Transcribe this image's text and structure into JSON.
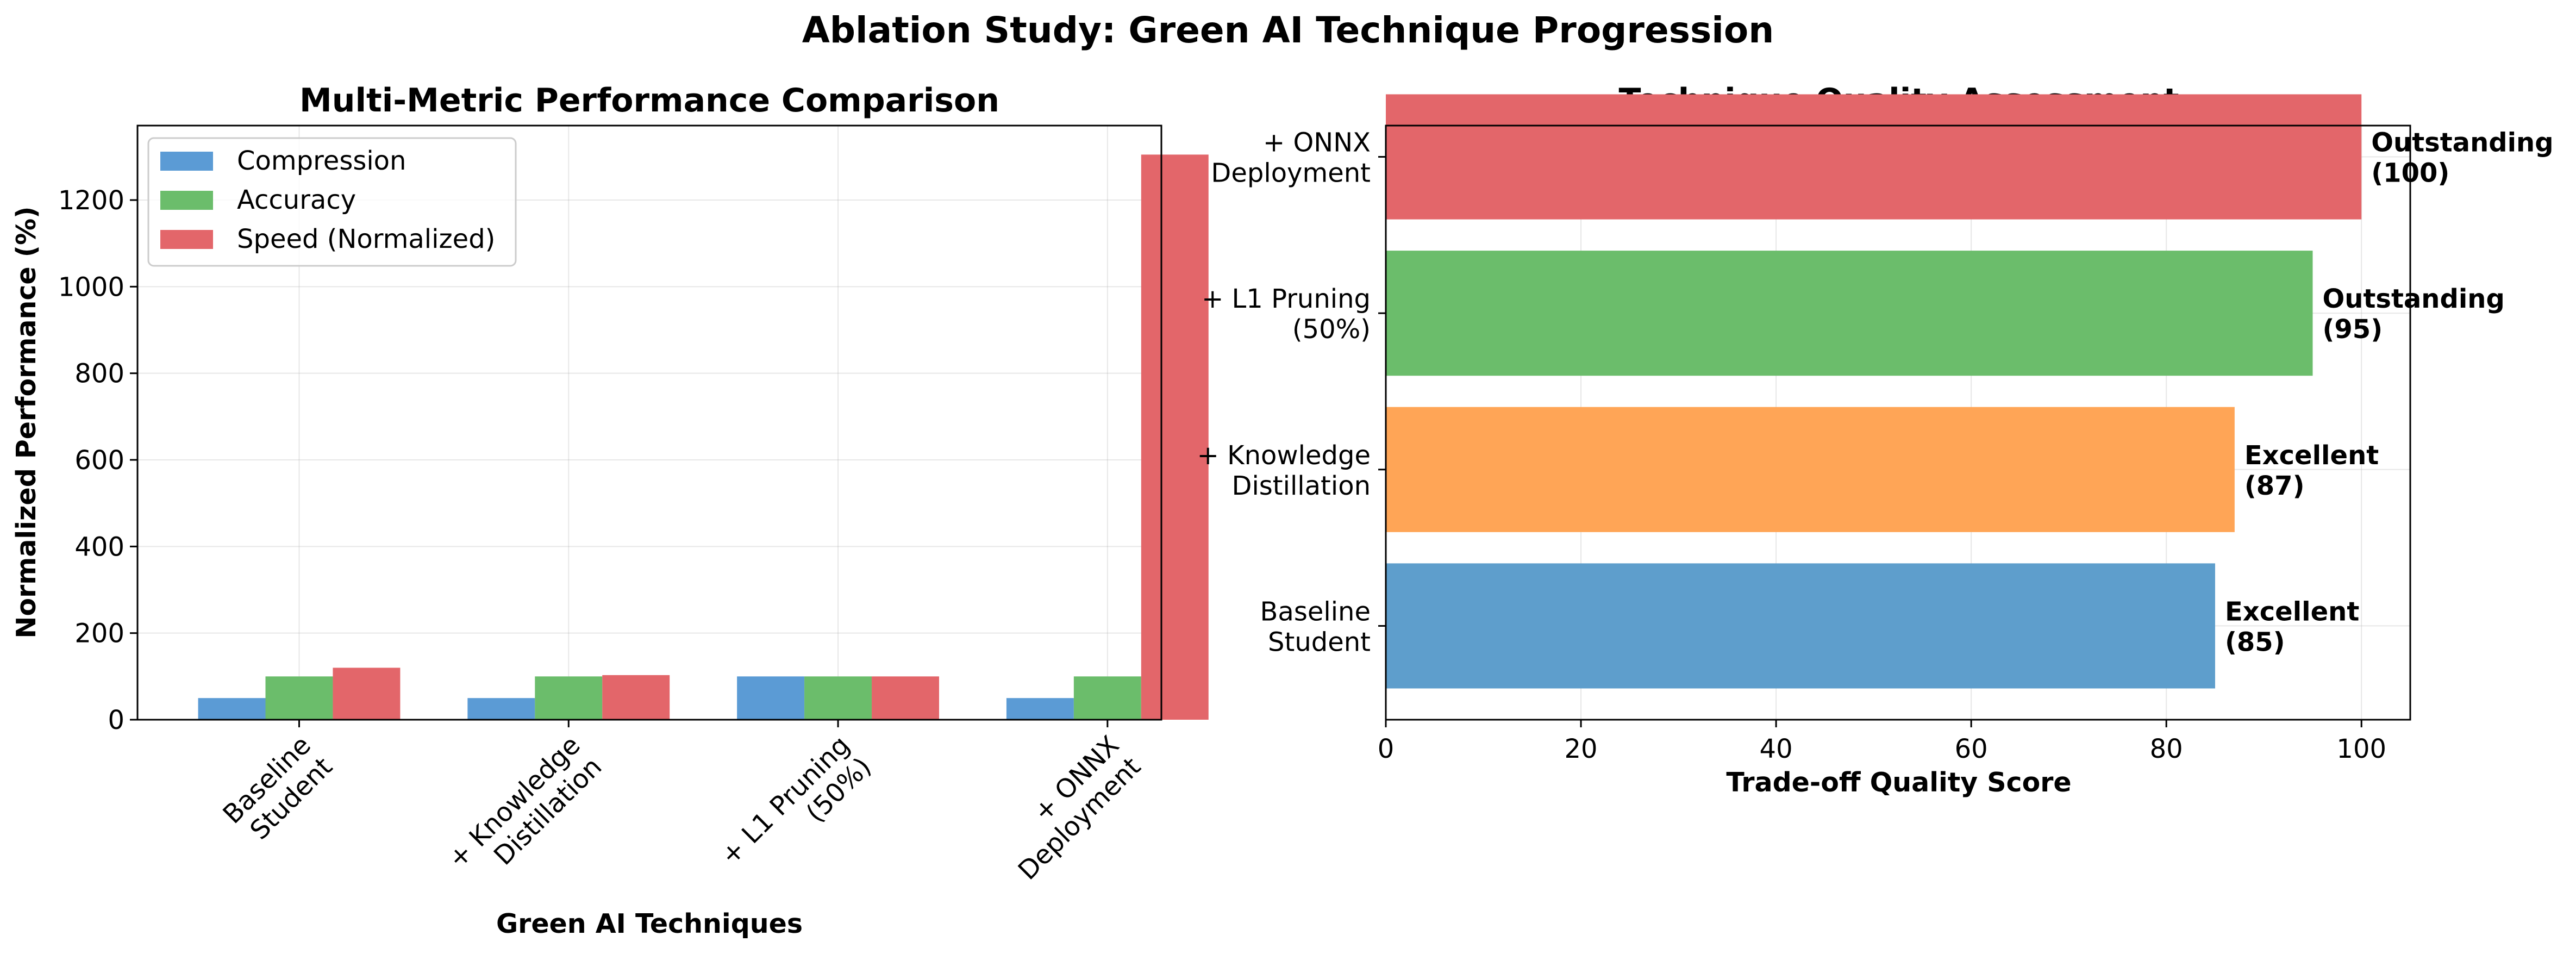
{
  "suptitle": "Ablation Study: Green AI Technique Progression",
  "chart_data": [
    {
      "type": "bar",
      "title": "Multi-Metric Performance Comparison",
      "xlabel": "Green AI Techniques",
      "ylabel": "Normalized Performance (%)",
      "categories": [
        [
          "Baseline",
          "Student"
        ],
        [
          "+ Knowledge",
          "Distillation"
        ],
        [
          "+ L1 Pruning",
          "(50%)"
        ],
        [
          "+ ONNX",
          "Deployment"
        ]
      ],
      "series": [
        {
          "name": "Compression",
          "color": "#5b9bd5",
          "values": [
            50,
            50,
            100,
            50
          ]
        },
        {
          "name": "Accuracy",
          "color": "#6bbd6b",
          "values": [
            100,
            100,
            100,
            100
          ]
        },
        {
          "name": "Speed (Normalized)",
          "color": "#e3666a",
          "values": [
            120,
            103,
            100,
            1305
          ]
        }
      ],
      "ylim": [
        0,
        1372
      ],
      "yticks": [
        0,
        200,
        400,
        600,
        800,
        1000,
        1200
      ],
      "grid": true,
      "legend": "top-left"
    },
    {
      "type": "barh",
      "title": "Technique Quality Assessment",
      "xlabel": "Trade-off Quality Score",
      "ylabel": "",
      "categories": [
        [
          "Baseline",
          "Student"
        ],
        [
          "+ Knowledge",
          "Distillation"
        ],
        [
          "+ L1 Pruning",
          "(50%)"
        ],
        [
          "+ ONNX",
          "Deployment"
        ]
      ],
      "values": [
        85,
        87,
        95,
        100
      ],
      "colors": [
        "#5e9ecc",
        "#ffa556",
        "#6bbd6b",
        "#e3666a"
      ],
      "bar_labels": [
        [
          "Excellent",
          "(85)"
        ],
        [
          "Excellent",
          "(87)"
        ],
        [
          "Outstanding",
          "(95)"
        ],
        [
          "Outstanding",
          "(100)"
        ]
      ],
      "xlim": [
        0,
        105
      ],
      "xticks": [
        0,
        20,
        40,
        60,
        80,
        100
      ],
      "grid": true
    }
  ]
}
